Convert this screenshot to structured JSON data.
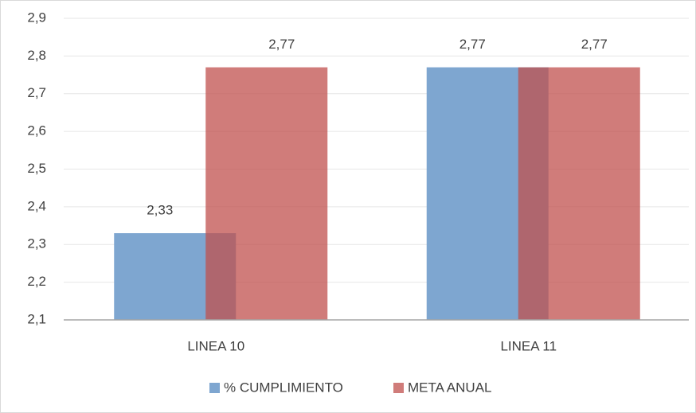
{
  "chart_data": {
    "type": "bar",
    "categories": [
      "LINEA 10",
      "LINEA 11"
    ],
    "series": [
      {
        "name": "% CUMPLIMIENTO",
        "color": "#7ea6d0",
        "values": [
          2.33,
          2.77
        ],
        "value_labels": [
          "2,33",
          "2,77"
        ]
      },
      {
        "name": "META ANUAL",
        "color": "#c0504d",
        "values": [
          2.77,
          2.77
        ],
        "value_labels": [
          "2,77",
          "2,77"
        ]
      }
    ],
    "ylim": [
      2.1,
      2.9
    ],
    "yticks": [
      {
        "value": 2.1,
        "label": "2,1"
      },
      {
        "value": 2.2,
        "label": "2,2"
      },
      {
        "value": 2.3,
        "label": "2,3"
      },
      {
        "value": 2.4,
        "label": "2,4"
      },
      {
        "value": 2.5,
        "label": "2,5"
      },
      {
        "value": 2.6,
        "label": "2,6"
      },
      {
        "value": 2.7,
        "label": "2,7"
      },
      {
        "value": 2.8,
        "label": "2,8"
      },
      {
        "value": 2.9,
        "label": "2,9"
      }
    ],
    "grid": true,
    "legend": "bottom"
  }
}
